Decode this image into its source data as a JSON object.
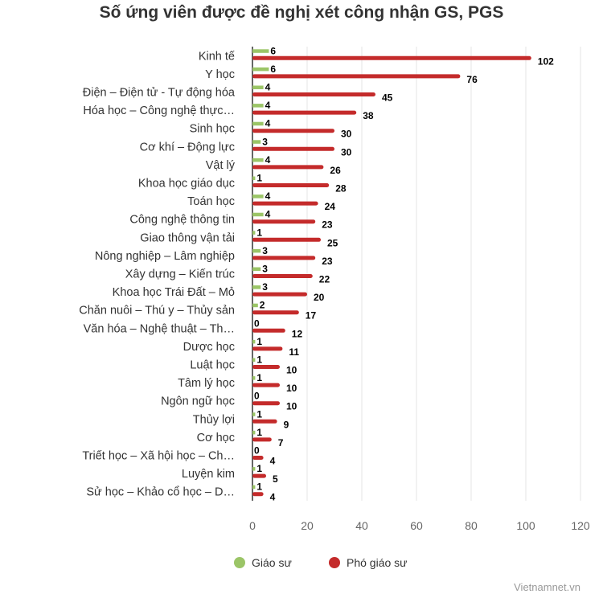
{
  "chart_data": {
    "type": "bar",
    "orientation": "horizontal",
    "title": "Số ứng viên được đề nghị xét công nhận GS, PGS",
    "categories": [
      "Kinh tế",
      "Y học",
      "Điện – Điện tử - Tự động hóa",
      "Hóa học – Công nghệ thực…",
      "Sinh học",
      "Cơ khí – Động lực",
      "Vật lý",
      "Khoa học giáo dục",
      "Toán học",
      "Công nghệ thông tin",
      "Giao thông vận tải",
      "Nông nghiệp – Lâm nghiệp",
      "Xây dựng – Kiến trúc",
      "Khoa học Trái Đất – Mỏ",
      "Chăn nuôi – Thú y – Thủy sản",
      "Văn hóa – Nghệ thuật – Th…",
      "Dược học",
      "Luật học",
      "Tâm lý học",
      "Ngôn ngữ học",
      "Thủy lợi",
      "Cơ học",
      "Triết học – Xã hội học – Ch…",
      "Luyện kim",
      "Sử học – Khảo cổ học – D…"
    ],
    "series": [
      {
        "name": "Giáo sư",
        "color": "#9bc567",
        "values": [
          6,
          6,
          4,
          4,
          4,
          3,
          4,
          1,
          4,
          4,
          1,
          3,
          3,
          3,
          2,
          0,
          1,
          1,
          1,
          0,
          1,
          1,
          0,
          1,
          1
        ]
      },
      {
        "name": "Phó giáo sư",
        "color": "#c42b2b",
        "values": [
          102,
          76,
          45,
          38,
          30,
          30,
          26,
          28,
          24,
          23,
          25,
          23,
          22,
          20,
          17,
          12,
          11,
          10,
          10,
          10,
          9,
          7,
          4,
          5,
          4
        ]
      }
    ],
    "x_ticks": [
      0,
      20,
      40,
      60,
      80,
      100,
      120
    ],
    "xlim": [
      0,
      120
    ],
    "xlabel": "",
    "ylabel": "",
    "grid": true,
    "legend_position": "bottom-center"
  },
  "credit": "Vietnamnet.vn"
}
